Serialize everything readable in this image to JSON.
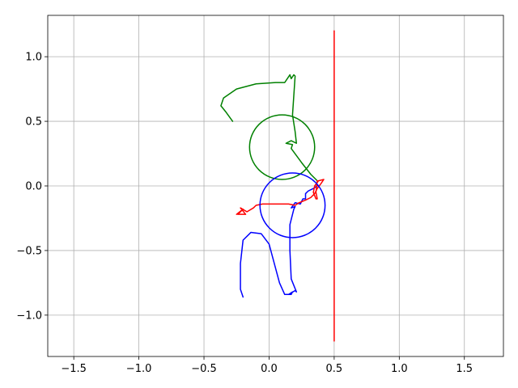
{
  "chart_data": {
    "type": "line",
    "title": "",
    "xlabel": "",
    "ylabel": "",
    "xlim": [
      -1.7,
      1.8
    ],
    "ylim": [
      -1.32,
      1.32
    ],
    "grid": true,
    "xticks": [
      -1.5,
      -1.0,
      -0.5,
      0.0,
      0.5,
      1.0,
      1.5
    ],
    "xtick_labels": [
      "−1.5",
      "−1.0",
      "−0.5",
      "0.0",
      "0.5",
      "1.0",
      "1.5"
    ],
    "yticks": [
      -1.0,
      -0.5,
      0.0,
      0.5,
      1.0
    ],
    "ytick_labels": [
      "−1.0",
      "−0.5",
      "0.0",
      "0.5",
      "1.0"
    ],
    "series": [
      {
        "color": "#008000",
        "points": [
          [
            -0.28,
            0.5
          ],
          [
            -0.33,
            0.57
          ],
          [
            -0.37,
            0.62
          ],
          [
            -0.35,
            0.68
          ],
          [
            -0.25,
            0.75
          ],
          [
            -0.1,
            0.79
          ],
          [
            0.05,
            0.8
          ],
          [
            0.12,
            0.8
          ],
          [
            0.14,
            0.83
          ],
          [
            0.16,
            0.86
          ],
          [
            0.17,
            0.83
          ],
          [
            0.19,
            0.86
          ],
          [
            0.2,
            0.85
          ],
          [
            0.19,
            0.7
          ],
          [
            0.18,
            0.55
          ],
          [
            0.2,
            0.42
          ],
          [
            0.21,
            0.33
          ],
          [
            0.17,
            0.35
          ],
          [
            0.13,
            0.33
          ],
          [
            0.18,
            0.32
          ],
          [
            0.17,
            0.29
          ],
          [
            0.25,
            0.18
          ],
          [
            0.32,
            0.09
          ],
          [
            0.37,
            0.04
          ]
        ]
      },
      {
        "color": "#0000ff",
        "points": [
          [
            -0.2,
            -0.86
          ],
          [
            -0.22,
            -0.8
          ],
          [
            -0.22,
            -0.6
          ],
          [
            -0.2,
            -0.42
          ],
          [
            -0.14,
            -0.36
          ],
          [
            -0.06,
            -0.37
          ],
          [
            0.0,
            -0.45
          ],
          [
            0.04,
            -0.6
          ],
          [
            0.08,
            -0.75
          ],
          [
            0.12,
            -0.84
          ],
          [
            0.17,
            -0.84
          ],
          [
            0.18,
            -0.82
          ],
          [
            0.15,
            -0.84
          ],
          [
            0.2,
            -0.81
          ],
          [
            0.21,
            -0.82
          ],
          [
            0.17,
            -0.72
          ],
          [
            0.16,
            -0.5
          ],
          [
            0.16,
            -0.3
          ],
          [
            0.19,
            -0.18
          ],
          [
            0.2,
            -0.16
          ],
          [
            0.17,
            -0.17
          ],
          [
            0.2,
            -0.13
          ],
          [
            0.24,
            -0.14
          ],
          [
            0.26,
            -0.1
          ],
          [
            0.28,
            -0.1
          ],
          [
            0.28,
            -0.06
          ],
          [
            0.3,
            -0.04
          ],
          [
            0.34,
            -0.02
          ],
          [
            0.37,
            0.0
          ]
        ]
      },
      {
        "color": "#ff0000",
        "points": [
          [
            -0.25,
            -0.22
          ],
          [
            -0.2,
            -0.18
          ],
          [
            -0.24,
            -0.22
          ],
          [
            -0.18,
            -0.22
          ],
          [
            -0.22,
            -0.17
          ],
          [
            -0.17,
            -0.2
          ],
          [
            -0.12,
            -0.17
          ],
          [
            -0.1,
            -0.15
          ],
          [
            -0.05,
            -0.14
          ],
          [
            0.05,
            -0.14
          ],
          [
            0.15,
            -0.14
          ],
          [
            0.2,
            -0.15
          ],
          [
            0.23,
            -0.13
          ],
          [
            0.28,
            -0.11
          ],
          [
            0.32,
            -0.09
          ],
          [
            0.35,
            -0.06
          ],
          [
            0.37,
            -0.02
          ],
          [
            0.4,
            0.02
          ],
          [
            0.42,
            0.05
          ],
          [
            0.38,
            0.04
          ],
          [
            0.35,
            0.0
          ],
          [
            0.34,
            -0.05
          ],
          [
            0.36,
            -0.1
          ],
          [
            0.37,
            -0.1
          ],
          [
            0.36,
            -0.05
          ],
          [
            0.37,
            0.04
          ]
        ]
      },
      {
        "color": "#ff0000",
        "points": [
          [
            0.5,
            -1.2
          ],
          [
            0.5,
            1.2
          ]
        ]
      }
    ],
    "circles": [
      {
        "color": "#008000",
        "center": [
          0.1,
          0.3
        ],
        "radius": 0.25
      },
      {
        "color": "#0000ff",
        "center": [
          0.18,
          -0.15
        ],
        "radius": 0.25
      }
    ]
  }
}
